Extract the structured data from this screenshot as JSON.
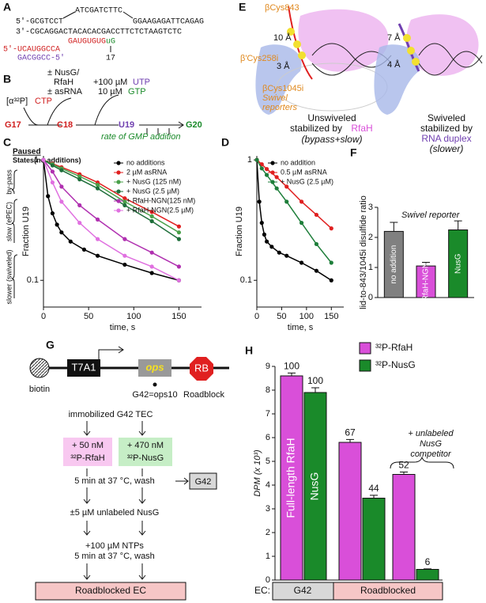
{
  "panels": {
    "A": {
      "letter": "A",
      "top": "ATCGATCTTC",
      "nt_left": "5'-GCGTCCT",
      "nt_right": "GGAAGAGATTCAGAG",
      "t": "3'-CGCAGGACTACACACGACCTTCTCTAAGTCTC",
      "rna_left": "5'-UCAUGGCCA",
      "rna_right": "GAUGUGUG",
      "rna_end": "uG",
      "asrna": "GACGGCC-5'",
      "pos": "17"
    },
    "B": {
      "letter": "B",
      "label_ctp": "[α³²P]",
      "ctp": "CTP",
      "factor1": "± NusG/",
      "factor2": "RfaH",
      "factor3": "± asRNA",
      "utp_conc": "+100 µM",
      "utp": "UTP",
      "gtp_conc": "10 µM",
      "gtp": "GTP",
      "g17": "G17",
      "c18": "C18",
      "u19": "U19",
      "g20": "G20",
      "rate": "rate of GMP addition"
    },
    "E": {
      "letter": "E",
      "cys843": "βCys843",
      "cys258": "β'Cys258i",
      "cys1045": "βCys1045i",
      "reporters1": "Swivel",
      "reporters2": "reporters",
      "d10": "10 Å",
      "d3": "3 Å",
      "d7": "7 Å",
      "d4": "4 Å",
      "left1": "Unswiveled",
      "left2": "stabilized by",
      "left3": "RfaH",
      "left4": "(bypass+slow)",
      "right1": "Swiveled",
      "right2": "stabilized by",
      "right3": "RNA duplex",
      "right4": "(slower)"
    },
    "G": {
      "letter": "G",
      "biotin": "biotin",
      "promoter": "T7A1",
      "ops": "ops",
      "rb": "RB",
      "g42_site": "G42=ops10",
      "roadblock": "Roadblock",
      "step1": "immobilized G42 TEC",
      "rfah1": "+ 50 nM",
      "rfah2": "³²P-RfaH",
      "nusg1": "+ 470 nM",
      "nusg2": "³²P-NusG",
      "step2": "5 min at 37 °C, wash",
      "g42": "G42",
      "step3": "±5 µM unlabeled NusG",
      "step4": "+100 µM NTPs",
      "step5": "5 min at 37 °C, wash",
      "final": "Roadblocked EC"
    }
  },
  "chart_data": [
    {
      "type": "line",
      "letter": "C",
      "ylabel": "Fraction U19",
      "xlabel": "time, s",
      "log_y": true,
      "xlim": [
        0,
        175
      ],
      "ylim": [
        0.06,
        1.08
      ],
      "xticks": [
        0,
        50,
        100,
        150
      ],
      "yticks": [
        1,
        0.1
      ],
      "states_title1": "Paused",
      "states_title2": "States(no additions)",
      "state1": "by-pass",
      "state2": "slow (ePEC)",
      "state3": "slower (swiveled)",
      "series": [
        {
          "name": "no additions",
          "color": "#000000",
          "x": [
            0,
            5,
            10,
            15,
            20,
            30,
            45,
            60,
            90,
            120,
            150
          ],
          "values": [
            1,
            0.5,
            0.36,
            0.29,
            0.25,
            0.21,
            0.18,
            0.16,
            0.135,
            0.115,
            0.1
          ]
        },
        {
          "name": "2 µM asRNA",
          "color": "#e02020",
          "x": [
            0,
            10,
            20,
            40,
            60,
            90,
            120,
            150
          ],
          "values": [
            1,
            0.93,
            0.87,
            0.76,
            0.65,
            0.48,
            0.37,
            0.28
          ]
        },
        {
          "name": "+ NusG (125 nM)",
          "color": "#4aa04a",
          "x": [
            0,
            10,
            20,
            40,
            60,
            90,
            120,
            150
          ],
          "values": [
            1,
            0.92,
            0.85,
            0.73,
            0.62,
            0.45,
            0.34,
            0.25
          ]
        },
        {
          "name": "+ NusG (2.5 µM)",
          "color": "#1e6e3a",
          "x": [
            0,
            10,
            20,
            40,
            60,
            90,
            120,
            150
          ],
          "values": [
            1,
            0.9,
            0.82,
            0.69,
            0.58,
            0.42,
            0.31,
            0.22
          ]
        },
        {
          "name": "+ RfaH-NGN(125 nM)",
          "color": "#b030b0",
          "x": [
            0,
            10,
            20,
            40,
            60,
            90,
            120,
            150
          ],
          "values": [
            1,
            0.8,
            0.6,
            0.42,
            0.32,
            0.22,
            0.17,
            0.13
          ]
        },
        {
          "name": "+ RfaH-NGN(2.5 µM)",
          "color": "#e070e0",
          "x": [
            0,
            10,
            20,
            40,
            60,
            90,
            120,
            150
          ],
          "values": [
            1,
            0.65,
            0.45,
            0.3,
            0.22,
            0.16,
            0.13,
            0.1
          ]
        }
      ]
    },
    {
      "type": "line",
      "letter": "D",
      "ylabel": "Fraction U19",
      "xlabel": "time, s",
      "log_y": true,
      "xlim": [
        0,
        175
      ],
      "ylim": [
        0.06,
        1.08
      ],
      "xticks": [
        0,
        50,
        100,
        150
      ],
      "yticks": [
        1,
        0.1
      ],
      "series": [
        {
          "name": "no addition",
          "color": "#000000",
          "x": [
            0,
            5,
            10,
            15,
            20,
            30,
            45,
            60,
            90,
            120,
            150
          ],
          "values": [
            1,
            0.45,
            0.3,
            0.24,
            0.21,
            0.19,
            0.17,
            0.16,
            0.14,
            0.12,
            0.1
          ]
        },
        {
          "name": "0.5 µM asRNA",
          "color": "#e02020",
          "x": [
            0,
            10,
            20,
            40,
            60,
            90,
            120,
            150
          ],
          "values": [
            1,
            0.92,
            0.84,
            0.72,
            0.6,
            0.45,
            0.35,
            0.27
          ]
        },
        {
          "name": "+ NusG (2.5 µM)",
          "color": "#1e7e3a",
          "x": [
            0,
            10,
            20,
            40,
            60,
            90,
            120,
            150
          ],
          "values": [
            1,
            0.85,
            0.75,
            0.58,
            0.45,
            0.3,
            0.2,
            0.14
          ]
        }
      ]
    },
    {
      "type": "bar",
      "letter": "F",
      "ylabel": "lid-to-843/1045i disulfide ratio",
      "annotation": "Swivel reporter",
      "ylim": [
        0,
        3
      ],
      "yticks": [
        0,
        1,
        2,
        3
      ],
      "categories": [
        "no addition",
        "RfaH-NGN",
        "NusG"
      ],
      "values": [
        2.2,
        1.05,
        2.25
      ],
      "errors": [
        0.3,
        0.12,
        0.3
      ],
      "colors": [
        "#808080",
        "#d94fd9",
        "#1a8a2a"
      ]
    },
    {
      "type": "bar",
      "letter": "H",
      "ylabel": "DPM (x 10³)",
      "ylim": [
        0,
        9
      ],
      "yticks": [
        0,
        1,
        2,
        3,
        4,
        5,
        6,
        7,
        8,
        9
      ],
      "annotation1": "+ unlabeled",
      "annotation2": "NusG",
      "annotation3": "competitor",
      "x_label": "EC:",
      "x_group_labels": [
        "G42",
        "Roadblocked"
      ],
      "series": [
        {
          "name": "³²P-RfaH",
          "color": "#d94fd9",
          "values": [
            8.6,
            5.8,
            4.45
          ],
          "errors": [
            0.12,
            0.12,
            0.1
          ],
          "percent_labels": [
            "100",
            "67",
            "52"
          ],
          "bar_label": "Full-length RfaH"
        },
        {
          "name": "³²P-NusG",
          "color": "#1a8a2a",
          "values": [
            7.9,
            3.45,
            0.45
          ],
          "errors": [
            0.2,
            0.12,
            0.02
          ],
          "percent_labels": [
            "100",
            "44",
            "6"
          ],
          "bar_label": "NusG"
        }
      ]
    }
  ]
}
